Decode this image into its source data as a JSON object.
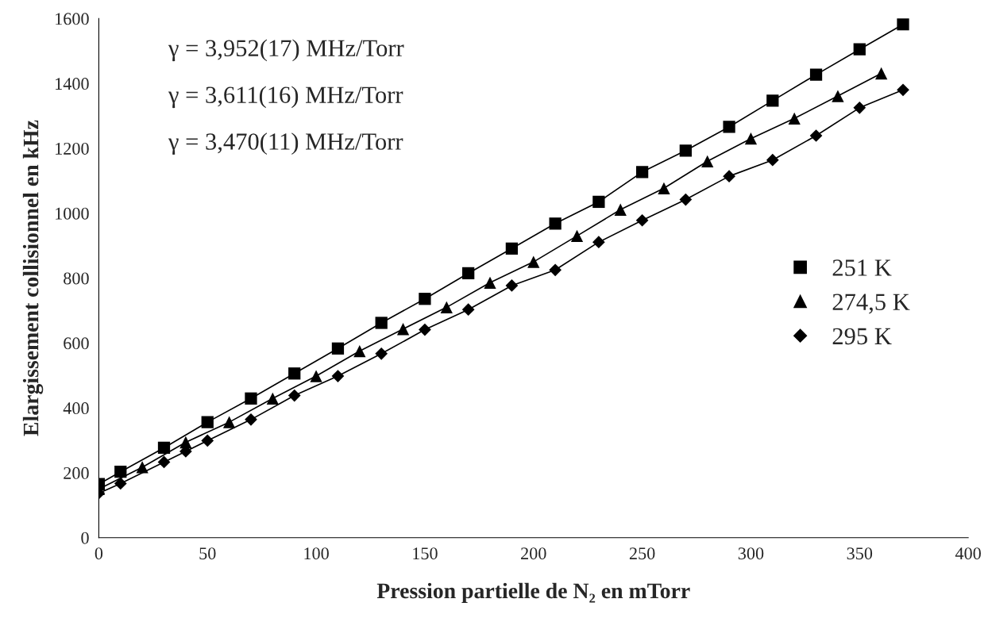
{
  "chart_data": {
    "type": "line",
    "xlabel": "Pression partielle de N₂ en mTorr",
    "ylabel": "Elargissement collisionnel en kHz",
    "annotations": [
      "γ = 3,952(17) MHz/Torr",
      "γ = 3,611(16) MHz/Torr",
      "γ = 3,470(11) MHz/Torr"
    ],
    "series": [
      {
        "name": "251 K",
        "color": "#000000",
        "marker": "square",
        "x": [
          0,
          10,
          30,
          50,
          70,
          90,
          110,
          130,
          150,
          170,
          190,
          210,
          230,
          250,
          270,
          290,
          310,
          330,
          350,
          370
        ],
        "values": [
          165,
          203,
          277,
          356,
          429,
          506,
          583,
          662,
          736,
          815,
          891,
          968,
          1035,
          1127,
          1193,
          1266,
          1347,
          1427,
          1505,
          1582
        ]
      },
      {
        "name": "274,5 K",
        "color": "#000000",
        "marker": "triangle",
        "x": [
          0,
          20,
          40,
          60,
          80,
          100,
          120,
          140,
          160,
          180,
          200,
          220,
          240,
          260,
          280,
          300,
          320,
          340,
          360
        ],
        "values": [
          150,
          217,
          294,
          356,
          429,
          498,
          575,
          643,
          710,
          786,
          850,
          930,
          1011,
          1077,
          1160,
          1230,
          1292,
          1361,
          1431
        ]
      },
      {
        "name": "295 K",
        "color": "#000000",
        "marker": "diamond",
        "x": [
          0,
          10,
          30,
          40,
          50,
          70,
          90,
          110,
          130,
          150,
          170,
          190,
          210,
          230,
          250,
          270,
          290,
          310,
          330,
          350,
          370
        ],
        "values": [
          137,
          167,
          233,
          266,
          299,
          364,
          438,
          498,
          567,
          641,
          703,
          777,
          825,
          911,
          978,
          1042,
          1114,
          1164,
          1239,
          1325,
          1380
        ]
      }
    ],
    "xlim": [
      0,
      400
    ],
    "xticks": [
      0,
      50,
      100,
      150,
      200,
      250,
      300,
      350,
      400
    ],
    "ylim": [
      0,
      1600
    ],
    "yticks": [
      0,
      200,
      400,
      600,
      800,
      1000,
      1200,
      1400,
      1600
    ],
    "grid": false,
    "legend": "right",
    "line_style": "solid"
  }
}
